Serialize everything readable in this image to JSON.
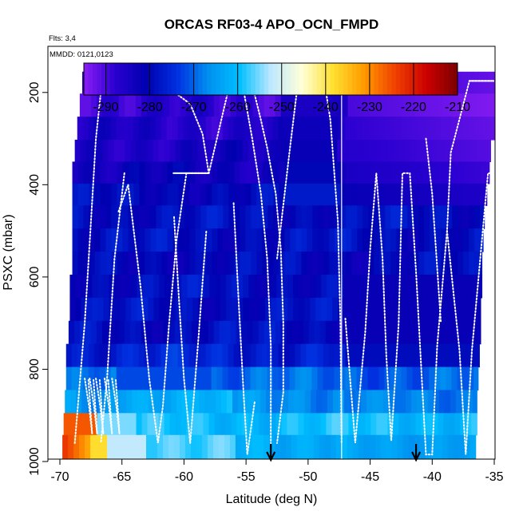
{
  "chart_data": {
    "type": "heatmap",
    "title": "ORCAS RF03-4 APO_OCN_FMPD",
    "flights_label": "Flts: 3,4",
    "mmdd_label": "MMDD: 0121,0123",
    "xlabel": "Latitude (deg N)",
    "ylabel": "PSXC (mbar)",
    "xlim": [
      -70,
      -35
    ],
    "ylim": [
      1000,
      100
    ],
    "x_ticks": [
      -70,
      -65,
      -60,
      -55,
      -50,
      -45,
      -40,
      -35
    ],
    "x_tick_labels": [
      "-70",
      "-65",
      "-60",
      "-55",
      "-50",
      "-45",
      "-40",
      "-35"
    ],
    "y_ticks": [
      200,
      400,
      600,
      800,
      1000
    ],
    "y_tick_labels": [
      "200",
      "400",
      "600",
      "800",
      "1000"
    ],
    "colorbar": {
      "range": [
        -295,
        -210
      ],
      "ticks": [
        -290,
        -280,
        -270,
        -260,
        -250,
        -240,
        -230,
        -220,
        -210
      ],
      "tick_labels": [
        "-290",
        "-280",
        "-270",
        "-260",
        "-250",
        "-240",
        "-230",
        "-220",
        "-210"
      ],
      "colors": [
        "#8b1df5",
        "#2a00d0",
        "#0000b0",
        "#0030e0",
        "#0090f0",
        "#00bfff",
        "#bde8ff",
        "#ffffd8",
        "#ffe030",
        "#ff9a00",
        "#f04000",
        "#cc0000",
        "#7a0000"
      ]
    },
    "flight_divider_lat": -47.3,
    "arrows_lat": [
      -53,
      -41.3
    ],
    "grid": false,
    "rows": [
      {
        "p": 180,
        "x0": -68.2,
        "x1": -35,
        "v": -286
      },
      {
        "p": 225,
        "x0": -68.4,
        "x1": -35,
        "v": -288
      },
      {
        "p": 280,
        "x0": -68.6,
        "x1": -35,
        "v": -286
      },
      {
        "p": 325,
        "x0": -68.8,
        "x1": -35.3,
        "v": -285
      },
      {
        "p": 375,
        "x0": -69.0,
        "x1": -35.4,
        "v": -283
      },
      {
        "p": 420,
        "x0": -69.0,
        "x1": -35.6,
        "v": -280
      },
      {
        "p": 470,
        "x0": -69.0,
        "x1": -35.8,
        "v": -279
      },
      {
        "p": 520,
        "x0": -69.0,
        "x1": -35.9,
        "v": -279
      },
      {
        "p": 570,
        "x0": -69.0,
        "x1": -36.0,
        "v": -280
      },
      {
        "p": 620,
        "x0": -69.2,
        "x1": -36.0,
        "v": -279
      },
      {
        "p": 670,
        "x0": -69.2,
        "x1": -36.1,
        "v": -279
      },
      {
        "p": 720,
        "x0": -69.3,
        "x1": -36.1,
        "v": -279
      },
      {
        "p": 770,
        "x0": -69.5,
        "x1": -36.2,
        "v": -276
      },
      {
        "p": 820,
        "x0": -69.5,
        "x1": -36.3,
        "v": -270
      },
      {
        "p": 870,
        "x0": -69.6,
        "x1": -36.4,
        "v": -266
      },
      {
        "p": 920,
        "x0": -69.7,
        "x1": -36.4,
        "v": -260
      },
      {
        "p": 965,
        "x0": -69.8,
        "x1": -36.5,
        "v": -250
      }
    ]
  }
}
